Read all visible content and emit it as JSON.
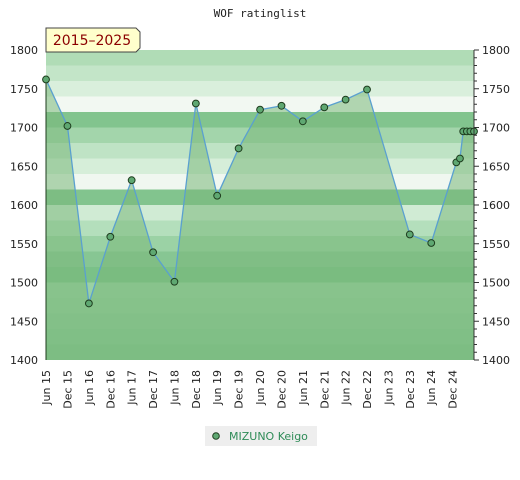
{
  "chart_data": {
    "type": "area",
    "title": "WOF ratinglist",
    "period_badge": "2015–2025",
    "ylim": [
      1400,
      1800
    ],
    "y_ticks": [
      1400,
      1450,
      1500,
      1550,
      1600,
      1650,
      1700,
      1750,
      1800
    ],
    "y_tick_labels": [
      "1400",
      "1450",
      "1500",
      "1550",
      "1600",
      "1650",
      "1700",
      "1750",
      "1800"
    ],
    "x_ticks": [
      "Jun 15",
      "Dec 15",
      "Jun 16",
      "Dec 16",
      "Jun 17",
      "Dec 17",
      "Jun 18",
      "Dec 18",
      "Jun 19",
      "Dec 19",
      "Jun 20",
      "Dec 20",
      "Jun 21",
      "Dec 21",
      "Jun 22",
      "Dec 22",
      "Jun 23",
      "Dec 23",
      "Jun 24",
      "Dec 24"
    ],
    "grid": "horizontal bands",
    "legend_position": "bottom-center",
    "colors": {
      "line": "#5aa0d0",
      "area": "#7ab87a",
      "marker_fill": "#5fa872",
      "marker_stroke": "#1e3d1e",
      "badge_fill": "#ffffcc",
      "badge_stroke": "#444444",
      "legend_bg": "#eeeeee"
    },
    "series": [
      {
        "name": "MIZUNO Keigo",
        "points": [
          {
            "x": "2015-06",
            "y": 1762
          },
          {
            "x": "2015-12",
            "y": 1702
          },
          {
            "x": "2016-06",
            "y": 1473
          },
          {
            "x": "2016-12",
            "y": 1559
          },
          {
            "x": "2017-06",
            "y": 1632
          },
          {
            "x": "2017-12",
            "y": 1539
          },
          {
            "x": "2018-06",
            "y": 1501
          },
          {
            "x": "2018-12",
            "y": 1731
          },
          {
            "x": "2019-06",
            "y": 1612
          },
          {
            "x": "2019-12",
            "y": 1673
          },
          {
            "x": "2020-06",
            "y": 1723
          },
          {
            "x": "2020-12",
            "y": 1728
          },
          {
            "x": "2021-06",
            "y": 1708
          },
          {
            "x": "2021-12",
            "y": 1726
          },
          {
            "x": "2022-06",
            "y": 1736
          },
          {
            "x": "2022-12",
            "y": 1749
          },
          {
            "x": "2023-12",
            "y": 1562
          },
          {
            "x": "2024-06",
            "y": 1551
          },
          {
            "x": "2025-01",
            "y": 1655
          },
          {
            "x": "2025-02",
            "y": 1660
          },
          {
            "x": "2025-03",
            "y": 1695
          },
          {
            "x": "2025-04",
            "y": 1695
          },
          {
            "x": "2025-05",
            "y": 1695
          },
          {
            "x": "2025-06",
            "y": 1695
          }
        ]
      }
    ]
  }
}
